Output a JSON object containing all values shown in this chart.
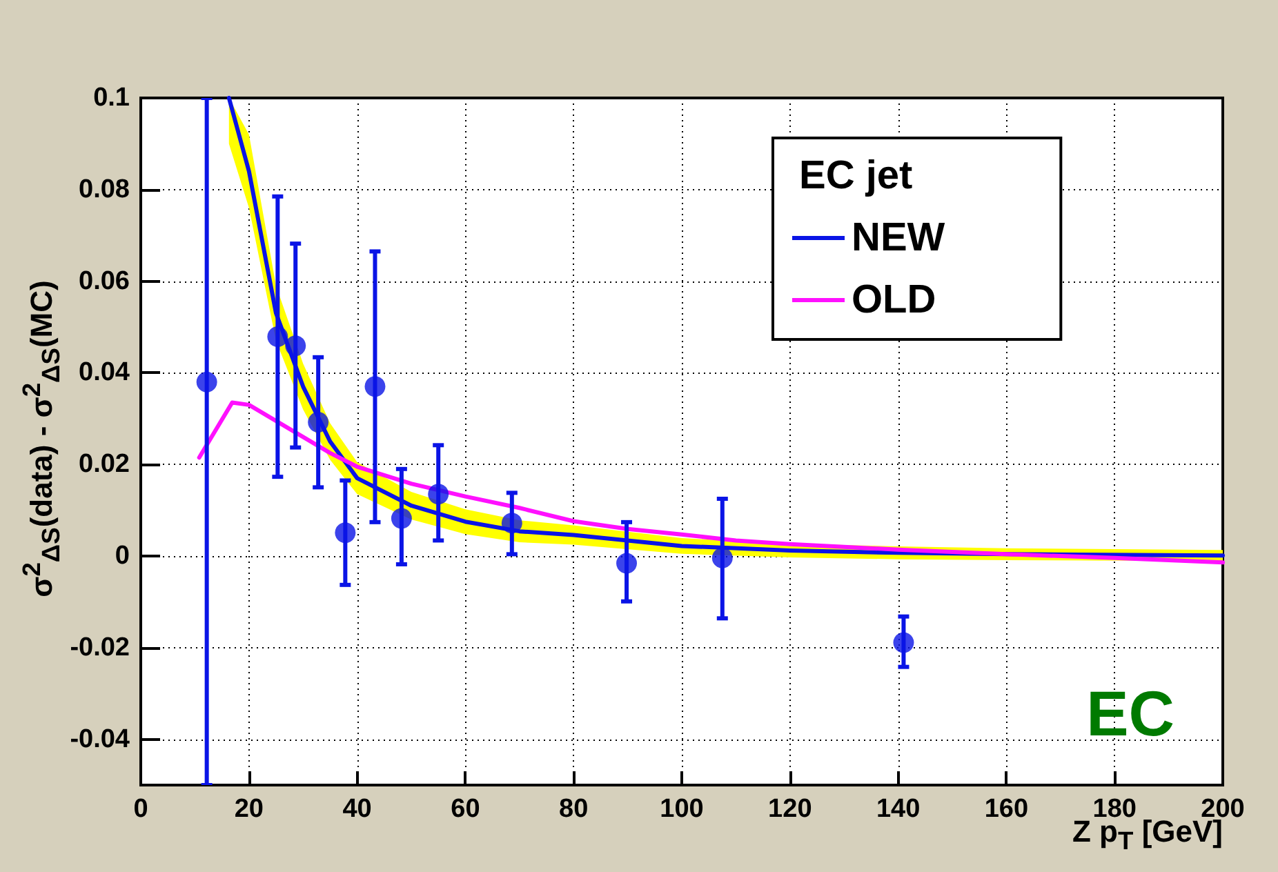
{
  "chart_data": {
    "type": "scatter",
    "xlabel": "Z p$_{T}$ [GeV]",
    "ylabel": "σ$^{2}$$_{ΔS}$(data) - σ$^{2}$$_{ΔS}$(MC)",
    "legend_title": "EC jet",
    "annotations": [
      "EC"
    ],
    "xlim": [
      0,
      200
    ],
    "xticks": [
      0,
      20,
      40,
      60,
      80,
      100,
      120,
      140,
      160,
      180,
      200
    ],
    "ylim": [
      -0.05,
      0.1
    ],
    "yticks": [
      -0.04,
      -0.02,
      0,
      0.02,
      0.04,
      0.06,
      0.08,
      0.1
    ],
    "grid": true,
    "legend": "top right",
    "series": [
      {
        "color": "#0a14e6",
        "marker": "circle",
        "x": [
          12.2,
          25.3,
          28.6,
          32.8,
          37.8,
          43.3,
          48.2,
          55.0,
          68.6,
          89.8,
          107.5,
          141
        ],
        "values": [
          0.038,
          0.0479,
          0.0459,
          0.0292,
          0.0051,
          0.037,
          0.0082,
          0.0135,
          0.0072,
          -0.0016,
          -0.0004,
          -0.0189
        ],
        "errors": [
          [
            -0.05,
            0.1
          ],
          [
            0.0173,
            0.0785
          ],
          [
            0.0237,
            0.0682
          ],
          [
            0.015,
            0.0434
          ],
          [
            -0.0063,
            0.0165
          ],
          [
            0.0074,
            0.0665
          ],
          [
            -0.0018,
            0.019
          ],
          [
            0.0034,
            0.0242
          ],
          [
            0.0004,
            0.0138
          ],
          [
            -0.0099,
            0.0074
          ],
          [
            -0.0136,
            0.0125
          ],
          [
            -0.0242,
            -0.0132
          ]
        ]
      },
      {
        "type": "line",
        "name": "NEW",
        "color": "#0a14e6",
        "marker": "none",
        "x": [
          16.3,
          20,
          25,
          30,
          35,
          40,
          50,
          60,
          70,
          80,
          100,
          120,
          140,
          160,
          200
        ],
        "values": [
          0.1,
          0.084,
          0.053,
          0.037,
          0.025,
          0.017,
          0.011,
          0.0075,
          0.0054,
          0.0046,
          0.0022,
          0.0012,
          0.0007,
          0.0004,
          0.0001
        ],
        "lower": [
          0.09,
          0.076,
          0.047,
          0.032,
          0.021,
          0.0135,
          0.008,
          0.0048,
          0.003,
          0.0025,
          0.0005,
          -0.0003,
          -0.0007,
          -0.0009,
          -0.0011
        ],
        "upper": [
          0.1,
          0.092,
          0.059,
          0.042,
          0.029,
          0.0205,
          0.014,
          0.0102,
          0.0078,
          0.0067,
          0.0039,
          0.0027,
          0.0021,
          0.0017,
          0.0013
        ]
      },
      {
        "type": "line",
        "name": "OLD",
        "color": "#ff10ff",
        "marker": "none",
        "x": [
          10.8,
          16.9,
          20,
          25,
          30,
          35,
          40,
          50,
          60,
          70,
          80,
          90,
          100,
          110,
          120,
          140,
          160,
          180,
          200
        ],
        "values": [
          0.0215,
          0.0335,
          0.033,
          0.0295,
          0.026,
          0.0225,
          0.0195,
          0.0158,
          0.013,
          0.0105,
          0.0076,
          0.0059,
          0.0047,
          0.0034,
          0.0026,
          0.0014,
          0.0004,
          -0.0004,
          -0.0014
        ]
      }
    ]
  }
}
